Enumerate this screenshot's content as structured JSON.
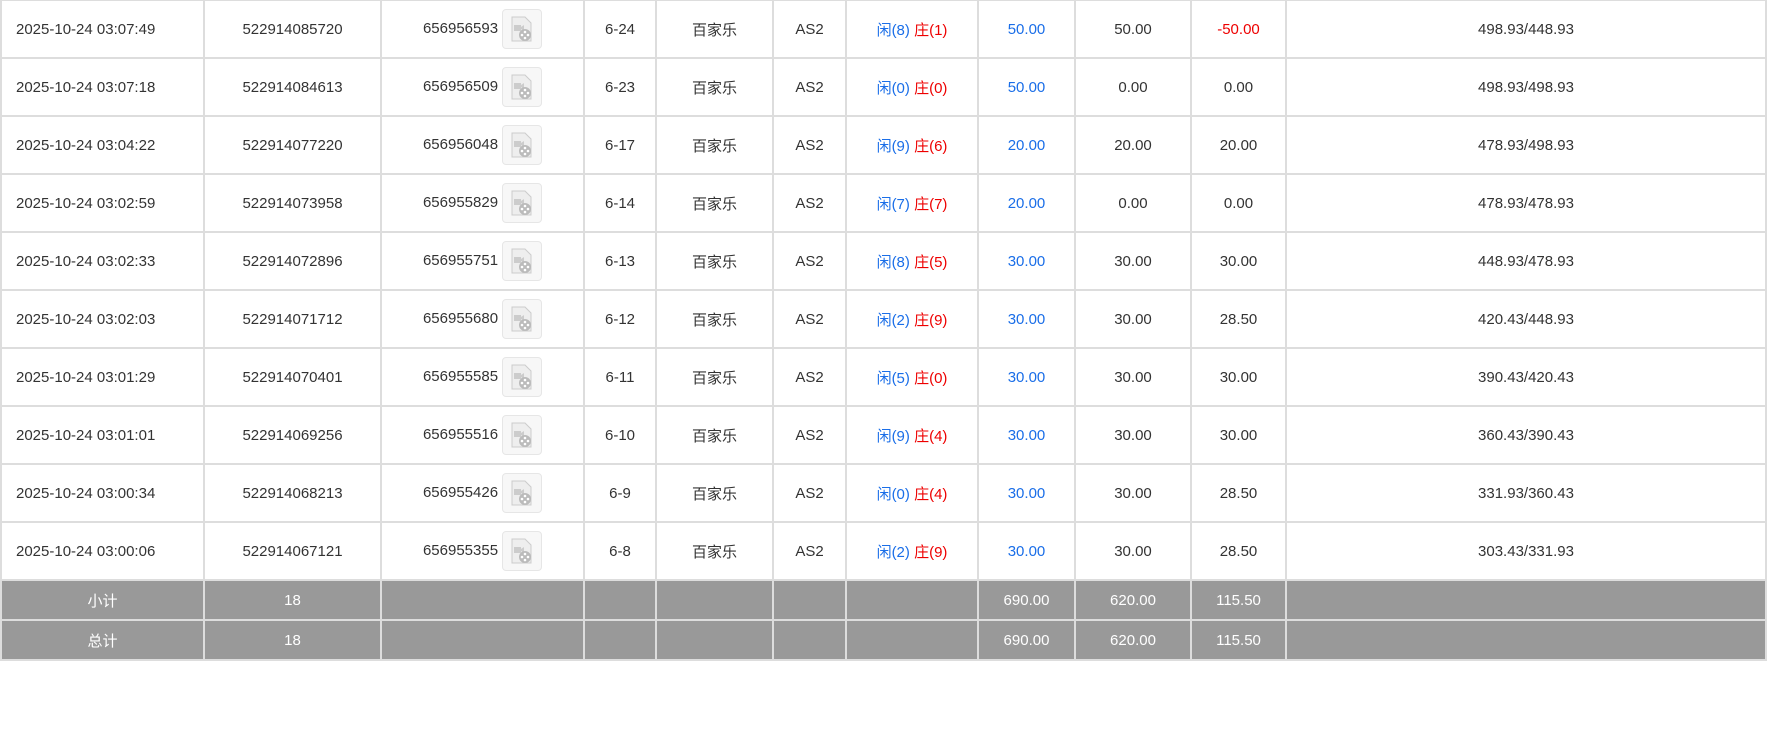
{
  "rows": [
    {
      "time": "2025-10-24 03:07:49",
      "order": "522914085720",
      "round": "656956593",
      "shoe": "6-24",
      "game": "百家乐",
      "table": "AS2",
      "player": "闲(8)",
      "banker": "庄(1)",
      "bet": "50.00",
      "valid": "50.00",
      "win": "-50.00",
      "balance": "498.93/448.93"
    },
    {
      "time": "2025-10-24 03:07:18",
      "order": "522914084613",
      "round": "656956509",
      "shoe": "6-23",
      "game": "百家乐",
      "table": "AS2",
      "player": "闲(0)",
      "banker": "庄(0)",
      "bet": "50.00",
      "valid": "0.00",
      "win": "0.00",
      "balance": "498.93/498.93"
    },
    {
      "time": "2025-10-24 03:04:22",
      "order": "522914077220",
      "round": "656956048",
      "shoe": "6-17",
      "game": "百家乐",
      "table": "AS2",
      "player": "闲(9)",
      "banker": "庄(6)",
      "bet": "20.00",
      "valid": "20.00",
      "win": "20.00",
      "balance": "478.93/498.93"
    },
    {
      "time": "2025-10-24 03:02:59",
      "order": "522914073958",
      "round": "656955829",
      "shoe": "6-14",
      "game": "百家乐",
      "table": "AS2",
      "player": "闲(7)",
      "banker": "庄(7)",
      "bet": "20.00",
      "valid": "0.00",
      "win": "0.00",
      "balance": "478.93/478.93"
    },
    {
      "time": "2025-10-24 03:02:33",
      "order": "522914072896",
      "round": "656955751",
      "shoe": "6-13",
      "game": "百家乐",
      "table": "AS2",
      "player": "闲(8)",
      "banker": "庄(5)",
      "bet": "30.00",
      "valid": "30.00",
      "win": "30.00",
      "balance": "448.93/478.93"
    },
    {
      "time": "2025-10-24 03:02:03",
      "order": "522914071712",
      "round": "656955680",
      "shoe": "6-12",
      "game": "百家乐",
      "table": "AS2",
      "player": "闲(2)",
      "banker": "庄(9)",
      "bet": "30.00",
      "valid": "30.00",
      "win": "28.50",
      "balance": "420.43/448.93"
    },
    {
      "time": "2025-10-24 03:01:29",
      "order": "522914070401",
      "round": "656955585",
      "shoe": "6-11",
      "game": "百家乐",
      "table": "AS2",
      "player": "闲(5)",
      "banker": "庄(0)",
      "bet": "30.00",
      "valid": "30.00",
      "win": "30.00",
      "balance": "390.43/420.43"
    },
    {
      "time": "2025-10-24 03:01:01",
      "order": "522914069256",
      "round": "656955516",
      "shoe": "6-10",
      "game": "百家乐",
      "table": "AS2",
      "player": "闲(9)",
      "banker": "庄(4)",
      "bet": "30.00",
      "valid": "30.00",
      "win": "30.00",
      "balance": "360.43/390.43"
    },
    {
      "time": "2025-10-24 03:00:34",
      "order": "522914068213",
      "round": "656955426",
      "shoe": "6-9",
      "game": "百家乐",
      "table": "AS2",
      "player": "闲(0)",
      "banker": "庄(4)",
      "bet": "30.00",
      "valid": "30.00",
      "win": "28.50",
      "balance": "331.93/360.43"
    },
    {
      "time": "2025-10-24 03:00:06",
      "order": "522914067121",
      "round": "656955355",
      "shoe": "6-8",
      "game": "百家乐",
      "table": "AS2",
      "player": "闲(2)",
      "banker": "庄(9)",
      "bet": "30.00",
      "valid": "30.00",
      "win": "28.50",
      "balance": "303.43/331.93"
    }
  ],
  "subtotal": {
    "label": "小计",
    "count": "18",
    "bet": "690.00",
    "valid": "620.00",
    "win": "115.50"
  },
  "total": {
    "label": "总计",
    "count": "18",
    "bet": "690.00",
    "valid": "620.00",
    "win": "115.50"
  },
  "colors": {
    "player": "#1a6ee8",
    "banker": "#e00000",
    "negative": "#e00000",
    "summary_bg": "#999999"
  },
  "icons": {
    "replay": "video-file-icon"
  }
}
